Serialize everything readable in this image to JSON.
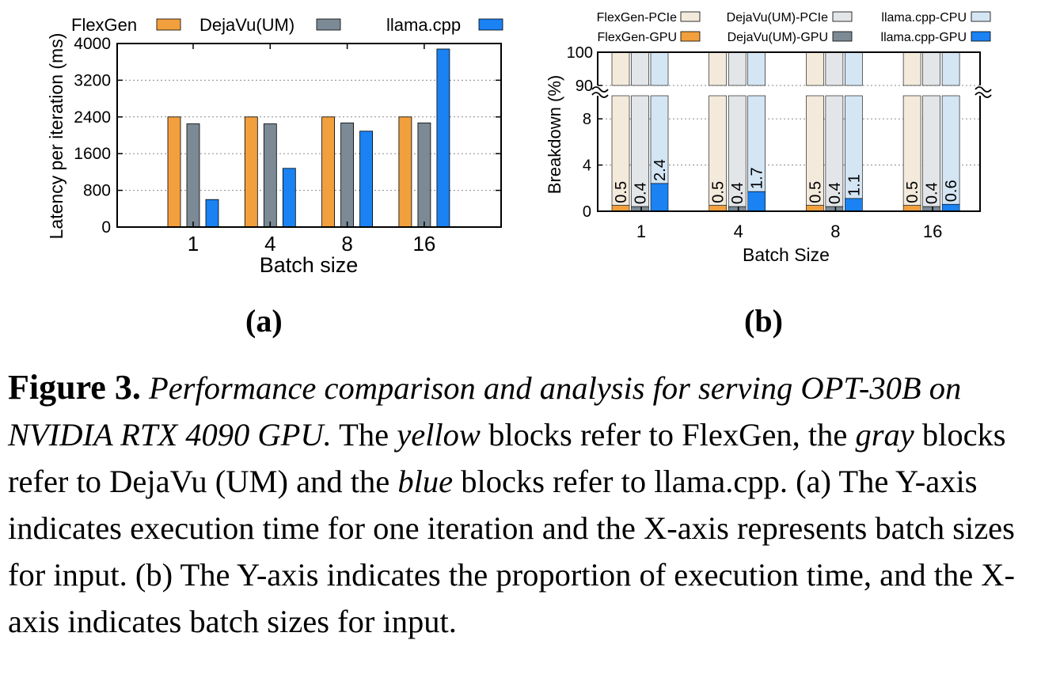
{
  "colors": {
    "flexgen": "#f2a03d",
    "dejavu": "#7b8a95",
    "llama": "#1a82f2",
    "flexgen_light": "#f3eadb",
    "dejavu_light": "#e3e6e8",
    "llama_light": "#d4e5f4"
  },
  "chart_data": [
    {
      "type": "bar",
      "panel": "(a)",
      "title": "",
      "xlabel": "Batch size",
      "ylabel": "Latency per iteration (ms)",
      "ylim": [
        0,
        4000
      ],
      "yticks": [
        "0",
        "800",
        "1600",
        "2400",
        "3200",
        "4000"
      ],
      "grid": true,
      "legend": "top",
      "categories": [
        "1",
        "4",
        "8",
        "16"
      ],
      "series": [
        {
          "name": "FlexGen",
          "values": [
            2400,
            2400,
            2400,
            2400
          ]
        },
        {
          "name": "DejaVu(UM)",
          "values": [
            2250,
            2250,
            2270,
            2270
          ]
        },
        {
          "name": "llama.cpp",
          "values": [
            600,
            1280,
            2090,
            3880
          ]
        }
      ]
    },
    {
      "type": "bar",
      "panel": "(b)",
      "title": "",
      "xlabel": "Batch Size",
      "ylabel": "Breakdown (%)",
      "ylim": [
        0,
        100
      ],
      "axis_break": [
        10,
        90
      ],
      "yticks_lower": [
        "0",
        "4",
        "8"
      ],
      "yticks_upper": [
        "90",
        "100"
      ],
      "grid": true,
      "legend": "top",
      "categories": [
        "1",
        "4",
        "8",
        "16"
      ],
      "series": [
        {
          "name": "FlexGen-PCIe",
          "values": [
            99.5,
            99.5,
            99.5,
            99.5
          ]
        },
        {
          "name": "DejaVu(UM)-PCIe",
          "values": [
            99.6,
            99.6,
            99.6,
            99.6
          ]
        },
        {
          "name": "llama.cpp-CPU",
          "values": [
            97.6,
            98.3,
            98.9,
            99.4
          ]
        },
        {
          "name": "FlexGen-GPU",
          "values": [
            0.5,
            0.5,
            0.5,
            0.5
          ]
        },
        {
          "name": "DejaVu(UM)-GPU",
          "values": [
            0.4,
            0.4,
            0.4,
            0.4
          ]
        },
        {
          "name": "llama.cpp-GPU",
          "values": [
            2.4,
            1.7,
            1.1,
            0.6
          ]
        }
      ],
      "data_labels": [
        [
          "0.5",
          "0.4",
          "2.4"
        ],
        [
          "0.5",
          "0.4",
          "1.7"
        ],
        [
          "0.5",
          "0.4",
          "1.1"
        ],
        [
          "0.5",
          "0.4",
          "0.6"
        ]
      ]
    }
  ],
  "caption": {
    "lead": "Figure 3.",
    "italic_title": "Performance comparison and analysis for serving OPT-30B on NVIDIA RTX 4090 GPU.",
    "t1": "The",
    "w_yellow": "yellow",
    "t2": "blocks refer to FlexGen, the",
    "w_gray": "gray",
    "t3": "blocks refer to DejaVu (UM) and the",
    "w_blue": "blue",
    "t4": "blocks refer to llama.cpp. (a) The Y-axis indicates execution time for one iteration and the X-axis represents batch sizes for input. (b) The Y-axis indicates the proportion of execution time, and the X-axis indicates batch sizes for input."
  }
}
